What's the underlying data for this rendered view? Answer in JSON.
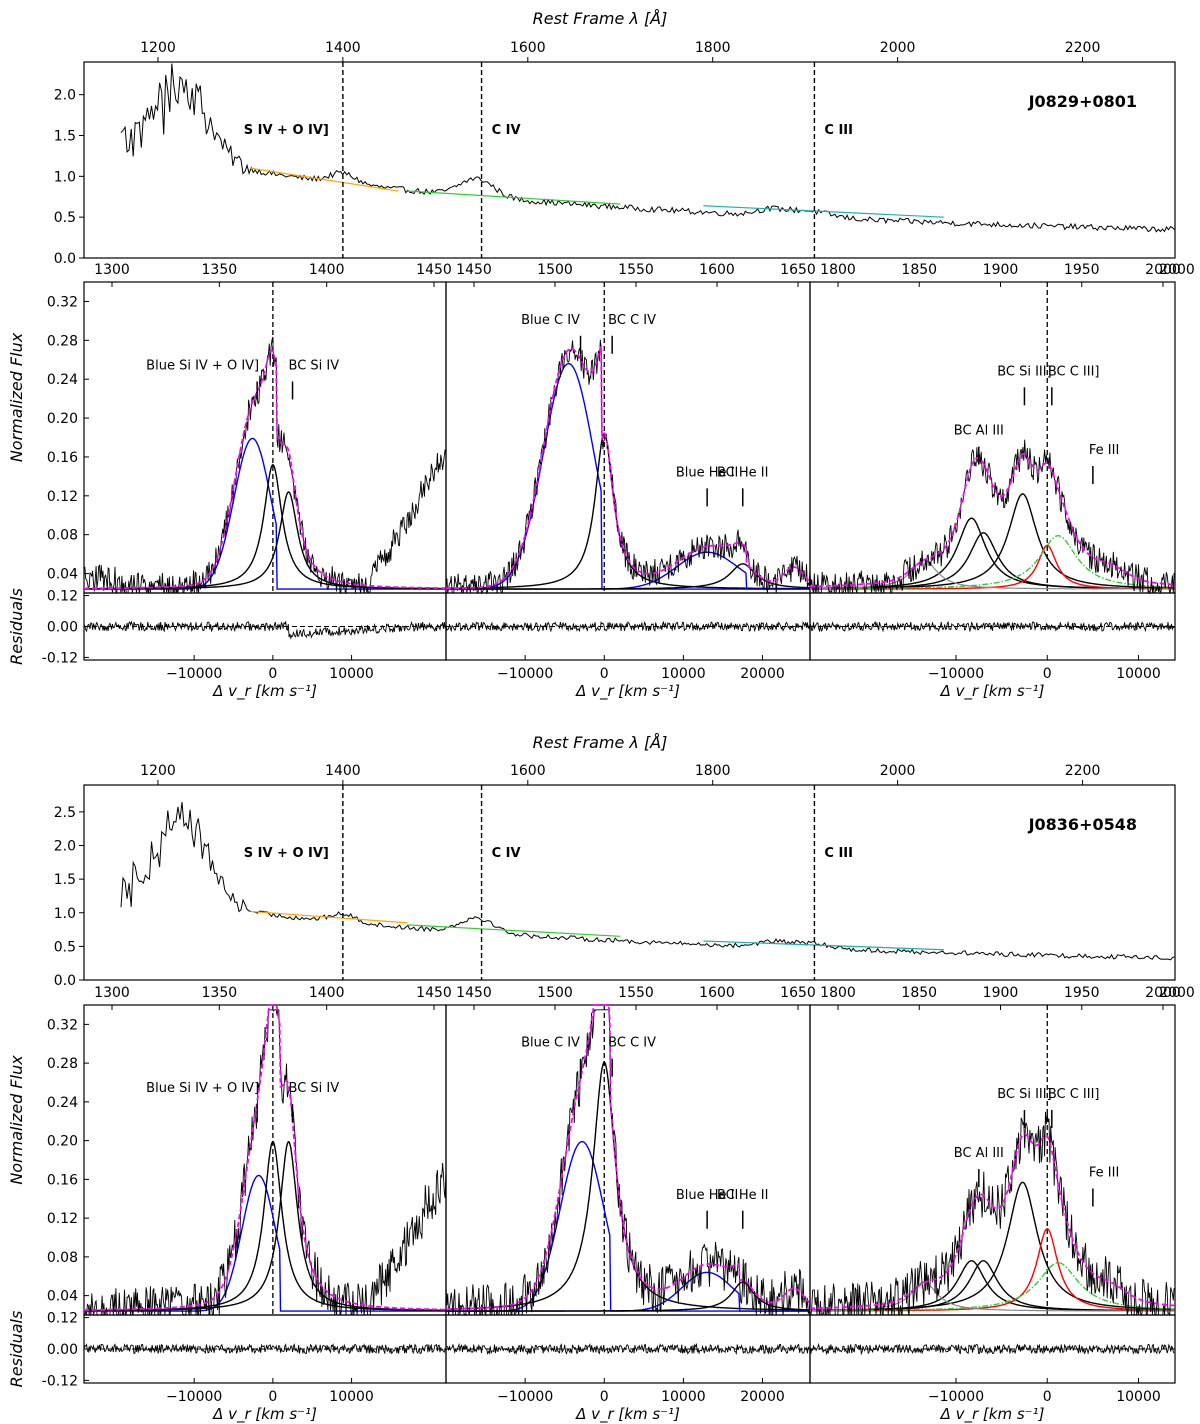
{
  "figure": {
    "top_axis_label": "Rest Frame λ [Å]",
    "y_label_flux": "Normalized Flux",
    "y_label_resid": "Residuals",
    "x_label_velocity": "Δ v_r [km s⁻¹]"
  },
  "colors": {
    "spectrum": "#000000",
    "continuum_si4": "#ffa500",
    "continuum_c4": "#32cd32",
    "continuum_c3": "#20b2aa",
    "blue_component": "#0000ff",
    "broad_component": "#000000",
    "total_fit": "#ff00ff",
    "fe3_template": "#32cd32",
    "c3_component": "#ff0000",
    "extra_component": "#888888"
  },
  "chart_data": [
    {
      "type": "line",
      "object": "J0829+0801",
      "overview": {
        "xlabel_top": "Rest Frame λ [Å]",
        "xlim": [
          1120,
          2300
        ],
        "xticks": [
          1200,
          1400,
          1600,
          1800,
          2000,
          2200
        ],
        "ylim": [
          0.0,
          2.4
        ],
        "yticks": [
          "0.0",
          "0.5",
          "1.0",
          "1.5",
          "2.0"
        ],
        "region_bounds_angstrom": [
          1400,
          1550,
          1910
        ],
        "region_labels": [
          "S IV + O IV]",
          "C IV",
          "C III"
        ],
        "continuum_fits": [
          {
            "name": "S IV + O IV] continuum",
            "x": [
              1300,
              1460
            ],
            "y": [
              1.1,
              0.82
            ]
          },
          {
            "name": "C IV continuum",
            "x": [
              1470,
              1700
            ],
            "y": [
              0.82,
              0.66
            ]
          },
          {
            "name": "C III continuum",
            "x": [
              1790,
              2050
            ],
            "y": [
              0.64,
              0.5
            ]
          }
        ]
      },
      "panels": [
        {
          "region": "Si IV",
          "top_ticks": [
            "1300",
            "1350",
            "1400",
            "1450"
          ],
          "labels": [
            {
              "text": "Blue Si IV + O IV]",
              "velocity": -2000
            },
            {
              "text": "BC Si IV",
              "velocity": 2500
            }
          ],
          "components": [
            {
              "name": "Blue Si IV + O IV]",
              "center": -2600,
              "fwhm": 5500,
              "amp": 0.155
            },
            {
              "name": "BC Si IV (1)",
              "center": 0,
              "fwhm": 2800,
              "amp": 0.128
            },
            {
              "name": "BC Si IV (2)",
              "center": 2000,
              "fwhm": 2800,
              "amp": 0.1
            }
          ]
        },
        {
          "region": "C IV",
          "top_ticks": [
            "1450",
            "1500",
            "1550",
            "1600",
            "1650"
          ],
          "labels": [
            {
              "text": "Blue C IV",
              "velocity": -3000
            },
            {
              "text": "BC C IV",
              "velocity": 1000
            },
            {
              "text": "Blue He II",
              "velocity": 13000
            },
            {
              "text": "BC He II",
              "velocity": 17500
            }
          ],
          "components": [
            {
              "name": "Blue C IV",
              "center": -4500,
              "fwhm": 7500,
              "amp": 0.232
            },
            {
              "name": "BC C IV",
              "center": 0,
              "fwhm": 2800,
              "amp": 0.16
            },
            {
              "name": "Blue He II",
              "center": 13000,
              "fwhm": 9000,
              "amp": 0.038
            },
            {
              "name": "BC He II",
              "center": 17500,
              "fwhm": 4000,
              "amp": 0.026
            }
          ]
        },
        {
          "region": "C III]",
          "top_ticks": [
            "1800",
            "1850",
            "1900",
            "1950",
            "2000"
          ],
          "labels": [
            {
              "text": "BC Al III",
              "velocity": -7500
            },
            {
              "text": "BC Si III]",
              "velocity": -2500
            },
            {
              "text": "BC C III]",
              "velocity": 500
            },
            {
              "text": "Fe III",
              "velocity": 5000
            }
          ],
          "components": [
            {
              "name": "BC Al III (1)",
              "center": -8300,
              "fwhm": 3800,
              "amp": 0.073
            },
            {
              "name": "BC Al III (2)",
              "center": -7000,
              "fwhm": 3800,
              "amp": 0.058
            },
            {
              "name": "BC Si III]",
              "center": -2700,
              "fwhm": 3800,
              "amp": 0.098
            },
            {
              "name": "BC C III]",
              "center": 0,
              "fwhm": 2500,
              "amp": 0.045
            },
            {
              "name": "Fe III",
              "center": 1200,
              "fwhm": 5000,
              "amp": 0.055
            }
          ]
        }
      ],
      "residuals": {
        "ylim": [
          -0.13,
          0.13
        ],
        "yticks": [
          "0.12",
          "0.00",
          "-0.12"
        ]
      },
      "velocity_axis": {
        "label": "Δ v_r [km s⁻¹]",
        "panel_ranges": [
          [
            -24000,
            22000
          ],
          [
            -20000,
            26000
          ],
          [
            -26000,
            14000
          ]
        ],
        "panel_ticks": [
          [
            "-10000",
            "0",
            "10000"
          ],
          [
            "-10000",
            "0",
            "10000",
            "20000"
          ],
          [
            "-10000",
            "0",
            "10000"
          ]
        ]
      },
      "flux_yticks": [
        "0.04",
        "0.08",
        "0.12",
        "0.16",
        "0.20",
        "0.24",
        "0.28",
        "0.32"
      ],
      "flux_ylim": [
        0.02,
        0.34
      ]
    },
    {
      "type": "line",
      "object": "J0836+0548",
      "overview": {
        "xlabel_top": "Rest Frame λ [Å]",
        "xlim": [
          1120,
          2300
        ],
        "xticks": [
          1200,
          1400,
          1600,
          1800,
          2000,
          2200
        ],
        "ylim": [
          0.0,
          2.9
        ],
        "yticks": [
          "0.0",
          "0.5",
          "1.0",
          "1.5",
          "2.0",
          "2.5"
        ],
        "region_bounds_angstrom": [
          1400,
          1550,
          1910
        ],
        "region_labels": [
          "S IV + O IV]",
          "C IV",
          "C III"
        ],
        "continuum_fits": [
          {
            "name": "S IV + O IV] continuum",
            "x": [
              1300,
              1470
            ],
            "y": [
              1.02,
              0.85
            ]
          },
          {
            "name": "C IV continuum",
            "x": [
              1470,
              1700
            ],
            "y": [
              0.82,
              0.65
            ]
          },
          {
            "name": "C III continuum",
            "x": [
              1790,
              2050
            ],
            "y": [
              0.58,
              0.45
            ]
          }
        ]
      },
      "panels": [
        {
          "region": "Si IV",
          "top_ticks": [
            "1300",
            "1350",
            "1400",
            "1450"
          ],
          "labels": [
            {
              "text": "Blue Si IV + O IV]",
              "velocity": -2000
            },
            {
              "text": "BC Si IV",
              "velocity": 2500
            }
          ],
          "components": [
            {
              "name": "Blue Si IV + O IV]",
              "center": -1800,
              "fwhm": 5000,
              "amp": 0.14
            },
            {
              "name": "BC Si IV (1)",
              "center": 0,
              "fwhm": 2800,
              "amp": 0.175
            },
            {
              "name": "BC Si IV (2)",
              "center": 2000,
              "fwhm": 2800,
              "amp": 0.175
            }
          ]
        },
        {
          "region": "C IV",
          "top_ticks": [
            "1450",
            "1500",
            "1550",
            "1600",
            "1650"
          ],
          "labels": [
            {
              "text": "Blue C IV",
              "velocity": -3000
            },
            {
              "text": "BC C IV",
              "velocity": 1000
            },
            {
              "text": "Blue He II",
              "velocity": 13000
            },
            {
              "text": "BC He II",
              "velocity": 17500
            }
          ],
          "components": [
            {
              "name": "Blue C IV",
              "center": -2800,
              "fwhm": 6500,
              "amp": 0.175
            },
            {
              "name": "BC C IV",
              "center": 0,
              "fwhm": 3500,
              "amp": 0.257
            },
            {
              "name": "Blue He II",
              "center": 13000,
              "fwhm": 7500,
              "amp": 0.04
            },
            {
              "name": "BC He II",
              "center": 17500,
              "fwhm": 3500,
              "amp": 0.03
            }
          ]
        },
        {
          "region": "C III]",
          "top_ticks": [
            "1800",
            "1850",
            "1900",
            "1950",
            "2000"
          ],
          "labels": [
            {
              "text": "BC Al III",
              "velocity": -7500
            },
            {
              "text": "BC Si III]",
              "velocity": -2500
            },
            {
              "text": "BC C III]",
              "velocity": 500
            },
            {
              "text": "Fe III",
              "velocity": 5000
            }
          ],
          "components": [
            {
              "name": "BC Al III (1)",
              "center": -8300,
              "fwhm": 3800,
              "amp": 0.052
            },
            {
              "name": "BC Al III (2)",
              "center": -7000,
              "fwhm": 3800,
              "amp": 0.052
            },
            {
              "name": "BC Si III]",
              "center": -2700,
              "fwhm": 4000,
              "amp": 0.133
            },
            {
              "name": "BC C III]",
              "center": 0,
              "fwhm": 2800,
              "amp": 0.085
            },
            {
              "name": "Fe III",
              "center": 1200,
              "fwhm": 5500,
              "amp": 0.05
            }
          ]
        }
      ],
      "residuals": {
        "ylim": [
          -0.13,
          0.13
        ],
        "yticks": [
          "0.12",
          "0.00",
          "-0.12"
        ]
      },
      "velocity_axis": {
        "label": "Δ v_r [km s⁻¹]",
        "panel_ranges": [
          [
            -24000,
            22000
          ],
          [
            -20000,
            26000
          ],
          [
            -26000,
            14000
          ]
        ],
        "panel_ticks": [
          [
            "-10000",
            "0",
            "10000"
          ],
          [
            "-10000",
            "0",
            "10000",
            "20000"
          ],
          [
            "-10000",
            "0",
            "10000"
          ]
        ]
      },
      "flux_yticks": [
        "0.04",
        "0.08",
        "0.12",
        "0.16",
        "0.20",
        "0.24",
        "0.28",
        "0.32"
      ],
      "flux_ylim": [
        0.02,
        0.34
      ]
    }
  ]
}
